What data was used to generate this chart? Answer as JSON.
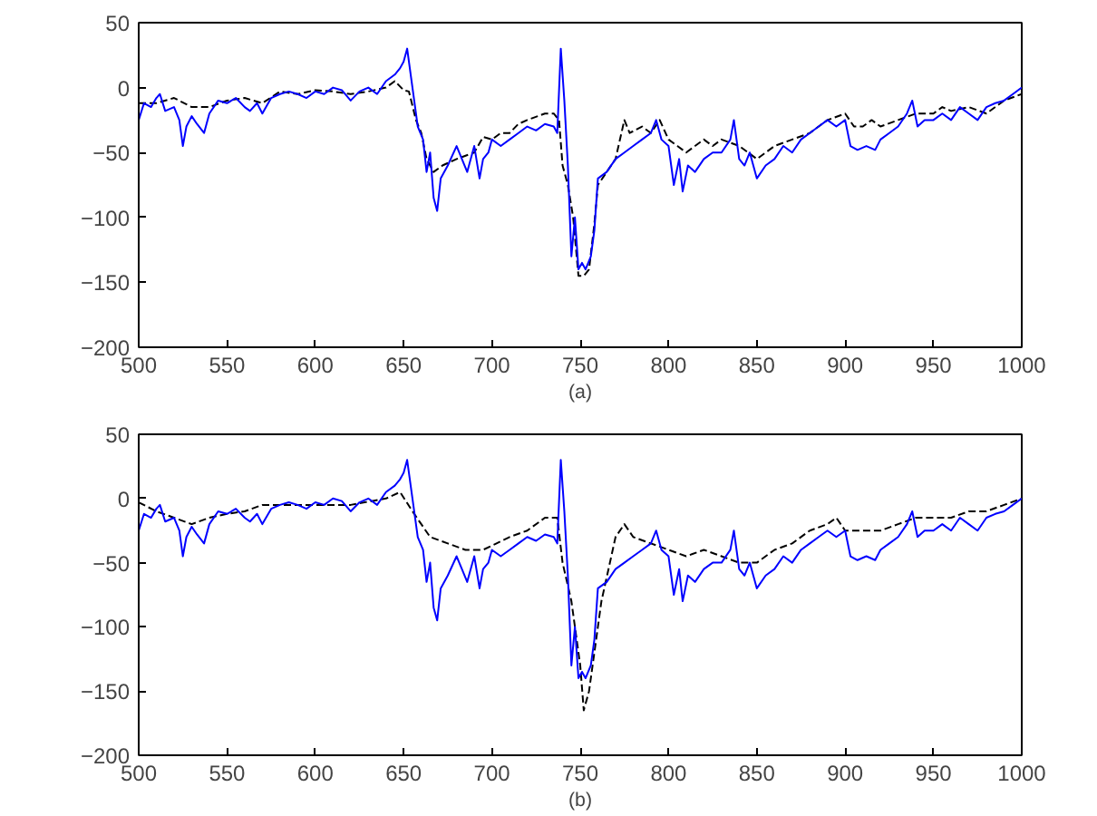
{
  "chart_data": [
    {
      "type": "line",
      "xlabel": "(a)",
      "xlim": [
        500,
        1000
      ],
      "ylim": [
        -200,
        50
      ],
      "xticks": [
        500,
        550,
        600,
        650,
        700,
        750,
        800,
        850,
        900,
        950,
        1000
      ],
      "yticks": [
        -200,
        -150,
        -100,
        -50,
        0,
        50
      ],
      "grid": false,
      "marker": "none",
      "series": [
        {
          "color": "#000000",
          "line_style": "dashed",
          "x": [
            500,
            510,
            520,
            530,
            540,
            550,
            560,
            570,
            580,
            590,
            600,
            610,
            620,
            630,
            640,
            645,
            650,
            653,
            657,
            660,
            663,
            667,
            672,
            680,
            690,
            695,
            700,
            705,
            710,
            715,
            720,
            730,
            735,
            738,
            740,
            743,
            746,
            749,
            752,
            755,
            758,
            760,
            765,
            770,
            775,
            778,
            785,
            790,
            795,
            800,
            805,
            810,
            815,
            820,
            825,
            830,
            840,
            845,
            850,
            855,
            860,
            870,
            880,
            890,
            900,
            905,
            910,
            915,
            920,
            930,
            940,
            950,
            955,
            960,
            970,
            980,
            990,
            1000
          ],
          "values": [
            -12,
            -12,
            -8,
            -15,
            -15,
            -10,
            -8,
            -12,
            -3,
            -5,
            -2,
            -3,
            -5,
            -3,
            0,
            5,
            -2,
            -3,
            -25,
            -35,
            -55,
            -65,
            -60,
            -55,
            -50,
            -38,
            -40,
            -35,
            -35,
            -28,
            -25,
            -20,
            -20,
            -25,
            -60,
            -75,
            -100,
            -145,
            -145,
            -140,
            -105,
            -75,
            -65,
            -55,
            -25,
            -35,
            -30,
            -35,
            -25,
            -40,
            -45,
            -50,
            -45,
            -40,
            -45,
            -40,
            -45,
            -50,
            -55,
            -50,
            -45,
            -40,
            -35,
            -25,
            -20,
            -30,
            -30,
            -25,
            -30,
            -25,
            -20,
            -20,
            -15,
            -18,
            -15,
            -20,
            -10,
            -5
          ]
        },
        {
          "color": "#0000ff",
          "line_style": "solid",
          "x": [
            500,
            503,
            507,
            510,
            512,
            515,
            520,
            523,
            525,
            527,
            530,
            533,
            537,
            540,
            545,
            550,
            555,
            560,
            563,
            567,
            570,
            575,
            580,
            585,
            590,
            595,
            600,
            605,
            610,
            615,
            620,
            625,
            630,
            635,
            640,
            645,
            648,
            650,
            652,
            655,
            658,
            661,
            663,
            665,
            667,
            669,
            671,
            675,
            680,
            683,
            686,
            690,
            693,
            695,
            698,
            700,
            705,
            710,
            715,
            720,
            725,
            730,
            735,
            737,
            739,
            741,
            743,
            745,
            747,
            749,
            751,
            753,
            756,
            758,
            760,
            765,
            770,
            775,
            780,
            785,
            790,
            793,
            796,
            800,
            803,
            806,
            808,
            811,
            815,
            820,
            825,
            830,
            835,
            837,
            840,
            843,
            846,
            850,
            855,
            860,
            865,
            870,
            875,
            880,
            885,
            890,
            895,
            900,
            903,
            907,
            912,
            917,
            920,
            925,
            930,
            935,
            938,
            941,
            945,
            950,
            955,
            960,
            965,
            970,
            975,
            980,
            985,
            990,
            995,
            1000
          ],
          "values": [
            -25,
            -12,
            -15,
            -8,
            -5,
            -18,
            -15,
            -25,
            -45,
            -30,
            -22,
            -28,
            -35,
            -20,
            -10,
            -12,
            -8,
            -15,
            -18,
            -12,
            -20,
            -8,
            -5,
            -3,
            -5,
            -8,
            -3,
            -5,
            0,
            -2,
            -10,
            -3,
            0,
            -5,
            5,
            10,
            15,
            20,
            30,
            0,
            -30,
            -40,
            -65,
            -50,
            -85,
            -95,
            -70,
            -60,
            -45,
            -55,
            -65,
            -45,
            -70,
            -55,
            -50,
            -40,
            -45,
            -40,
            -35,
            -30,
            -33,
            -28,
            -30,
            -35,
            30,
            -10,
            -60,
            -130,
            -100,
            -140,
            -135,
            -140,
            -130,
            -110,
            -70,
            -65,
            -55,
            -50,
            -45,
            -40,
            -35,
            -25,
            -40,
            -45,
            -75,
            -55,
            -80,
            -60,
            -65,
            -55,
            -50,
            -50,
            -40,
            -25,
            -55,
            -60,
            -50,
            -70,
            -60,
            -55,
            -45,
            -50,
            -40,
            -35,
            -30,
            -25,
            -30,
            -25,
            -45,
            -48,
            -45,
            -48,
            -40,
            -35,
            -30,
            -20,
            -10,
            -30,
            -25,
            -25,
            -20,
            -25,
            -15,
            -20,
            -25,
            -15,
            -12,
            -10,
            -5,
            0
          ]
        }
      ]
    },
    {
      "type": "line",
      "xlabel": "(b)",
      "xlim": [
        500,
        1000
      ],
      "ylim": [
        -200,
        50
      ],
      "xticks": [
        500,
        550,
        600,
        650,
        700,
        750,
        800,
        850,
        900,
        950,
        1000
      ],
      "yticks": [
        -200,
        -150,
        -100,
        -50,
        0,
        50
      ],
      "grid": false,
      "marker": "none",
      "series": [
        {
          "color": "#000000",
          "line_style": "dashed",
          "x": [
            500,
            510,
            520,
            530,
            540,
            550,
            560,
            570,
            580,
            590,
            600,
            620,
            640,
            648,
            655,
            660,
            665,
            675,
            685,
            695,
            710,
            720,
            730,
            737,
            740,
            745,
            750,
            752,
            755,
            758,
            762,
            770,
            775,
            780,
            790,
            800,
            810,
            820,
            830,
            840,
            850,
            860,
            870,
            880,
            890,
            895,
            900,
            910,
            920,
            930,
            940,
            950,
            960,
            970,
            980,
            990,
            1000
          ],
          "values": [
            -3,
            -10,
            -15,
            -20,
            -15,
            -12,
            -10,
            -5,
            -5,
            -5,
            -5,
            -5,
            0,
            5,
            -10,
            -20,
            -30,
            -35,
            -40,
            -40,
            -30,
            -25,
            -15,
            -15,
            -50,
            -80,
            -130,
            -165,
            -150,
            -120,
            -80,
            -30,
            -20,
            -30,
            -35,
            -40,
            -45,
            -40,
            -45,
            -50,
            -50,
            -40,
            -35,
            -25,
            -20,
            -15,
            -25,
            -25,
            -25,
            -20,
            -15,
            -15,
            -15,
            -10,
            -10,
            -5,
            0
          ]
        },
        {
          "color": "#0000ff",
          "line_style": "solid",
          "x": [
            500,
            503,
            507,
            510,
            512,
            515,
            520,
            523,
            525,
            527,
            530,
            533,
            537,
            540,
            545,
            550,
            555,
            560,
            563,
            567,
            570,
            575,
            580,
            585,
            590,
            595,
            600,
            605,
            610,
            615,
            620,
            625,
            630,
            635,
            640,
            645,
            648,
            650,
            652,
            655,
            658,
            661,
            663,
            665,
            667,
            669,
            671,
            675,
            680,
            683,
            686,
            690,
            693,
            695,
            698,
            700,
            705,
            710,
            715,
            720,
            725,
            730,
            735,
            737,
            739,
            741,
            743,
            745,
            747,
            749,
            751,
            753,
            756,
            758,
            760,
            765,
            770,
            775,
            780,
            785,
            790,
            793,
            796,
            800,
            803,
            806,
            808,
            811,
            815,
            820,
            825,
            830,
            835,
            837,
            840,
            843,
            846,
            850,
            855,
            860,
            865,
            870,
            875,
            880,
            885,
            890,
            895,
            900,
            903,
            907,
            912,
            917,
            920,
            925,
            930,
            935,
            938,
            941,
            945,
            950,
            955,
            960,
            965,
            970,
            975,
            980,
            985,
            990,
            995,
            1000
          ],
          "values": [
            -25,
            -12,
            -15,
            -8,
            -5,
            -18,
            -15,
            -25,
            -45,
            -30,
            -22,
            -28,
            -35,
            -20,
            -10,
            -12,
            -8,
            -15,
            -18,
            -12,
            -20,
            -8,
            -5,
            -3,
            -5,
            -8,
            -3,
            -5,
            0,
            -2,
            -10,
            -3,
            0,
            -5,
            5,
            10,
            15,
            20,
            30,
            0,
            -30,
            -40,
            -65,
            -50,
            -85,
            -95,
            -70,
            -60,
            -45,
            -55,
            -65,
            -45,
            -70,
            -55,
            -50,
            -40,
            -45,
            -40,
            -35,
            -30,
            -33,
            -28,
            -30,
            -35,
            30,
            -10,
            -60,
            -130,
            -100,
            -140,
            -135,
            -140,
            -130,
            -110,
            -70,
            -65,
            -55,
            -50,
            -45,
            -40,
            -35,
            -25,
            -40,
            -45,
            -75,
            -55,
            -80,
            -60,
            -65,
            -55,
            -50,
            -50,
            -40,
            -25,
            -55,
            -60,
            -50,
            -70,
            -60,
            -55,
            -45,
            -50,
            -40,
            -35,
            -30,
            -25,
            -30,
            -25,
            -45,
            -48,
            -45,
            -48,
            -40,
            -35,
            -30,
            -20,
            -10,
            -30,
            -25,
            -25,
            -20,
            -25,
            -15,
            -20,
            -25,
            -15,
            -12,
            -10,
            -5,
            0
          ]
        }
      ]
    }
  ]
}
